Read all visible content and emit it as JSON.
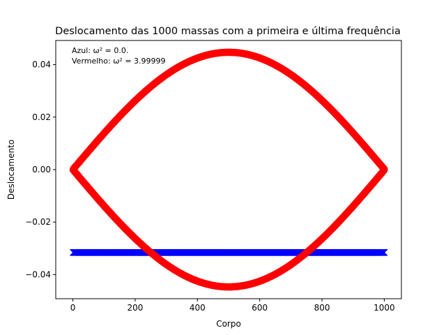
{
  "chart_data": {
    "type": "scatter",
    "title": "Deslocamento das 1000 massas com a primeira e última frequência",
    "xlabel": "Corpo",
    "ylabel": "Deslocamento",
    "xlim": [
      -55,
      1055
    ],
    "ylim": [
      -0.0492,
      0.0492
    ],
    "xticks": [
      0,
      200,
      400,
      600,
      800,
      1000
    ],
    "yticks": [
      -0.04,
      -0.02,
      0.0,
      0.02,
      0.04
    ],
    "ytick_labels": [
      "−0.04",
      "−0.02",
      "0.00",
      "0.02",
      "0.04"
    ],
    "grid": false,
    "annotations": [
      "Azul: ω² = 0.0.",
      "Vermelho: ω² = 3.99999"
    ],
    "series": [
      {
        "color": "#0000ff",
        "marker": "x",
        "n_points": 1000,
        "x_range": [
          1,
          1000
        ],
        "y_value": -0.0316
      },
      {
        "color": "#ff0000",
        "marker": "o",
        "n_points": 1000,
        "x_range": [
          1,
          1000
        ],
        "envelope_amplitude": 0.0447,
        "pattern": "alternating sign, sinusoidal envelope"
      }
    ]
  }
}
